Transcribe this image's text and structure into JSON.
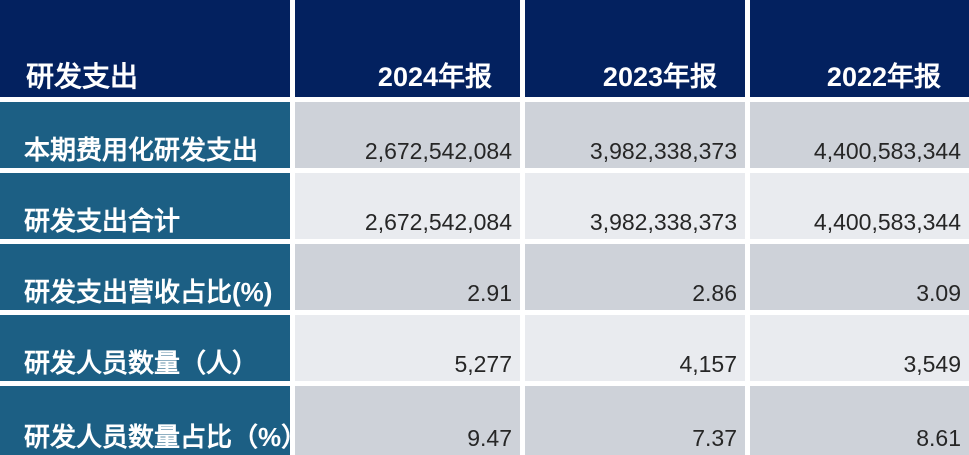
{
  "table": {
    "header": {
      "metric_label": "研发支出",
      "years": [
        "2024年报",
        "2023年报",
        "2022年报"
      ]
    },
    "rows": [
      {
        "label": "本期费用化研发支出",
        "values": [
          "2,672,542,084",
          "3,982,338,373",
          "4,400,583,344"
        ]
      },
      {
        "label": "研发支出合计",
        "values": [
          "2,672,542,084",
          "3,982,338,373",
          "4,400,583,344"
        ]
      },
      {
        "label": "研发支出营收占比(%)",
        "values": [
          "2.91",
          "2.86",
          "3.09"
        ]
      },
      {
        "label": "研发人员数量（人）",
        "values": [
          "5,277",
          "4,157",
          "3,549"
        ]
      },
      {
        "label": "研发人员数量占比（%）",
        "values": [
          "9.47",
          "7.37",
          "8.61"
        ]
      }
    ],
    "colors": {
      "header_bg": "#03215f",
      "label_bg": "#1c5f84",
      "cell_bg_dark": "#ced2d9",
      "cell_bg_light": "#e9ebef",
      "header_text": "#ffffff",
      "value_text": "#262626",
      "separator": "#ffffff"
    }
  },
  "chart_data": {
    "type": "table",
    "title": "研发支出",
    "columns": [
      "研发支出",
      "2024年报",
      "2023年报",
      "2022年报"
    ],
    "rows": [
      [
        "本期费用化研发支出",
        2672542084,
        3982338373,
        4400583344
      ],
      [
        "研发支出合计",
        2672542084,
        3982338373,
        4400583344
      ],
      [
        "研发支出营收占比(%)",
        2.91,
        2.86,
        3.09
      ],
      [
        "研发人员数量（人）",
        5277,
        4157,
        3549
      ],
      [
        "研发人员数量占比（%）",
        9.47,
        7.37,
        8.61
      ]
    ],
    "layout": {
      "header_row": true,
      "label_column": true,
      "value_alignment": "right",
      "striped_rows": true
    }
  }
}
